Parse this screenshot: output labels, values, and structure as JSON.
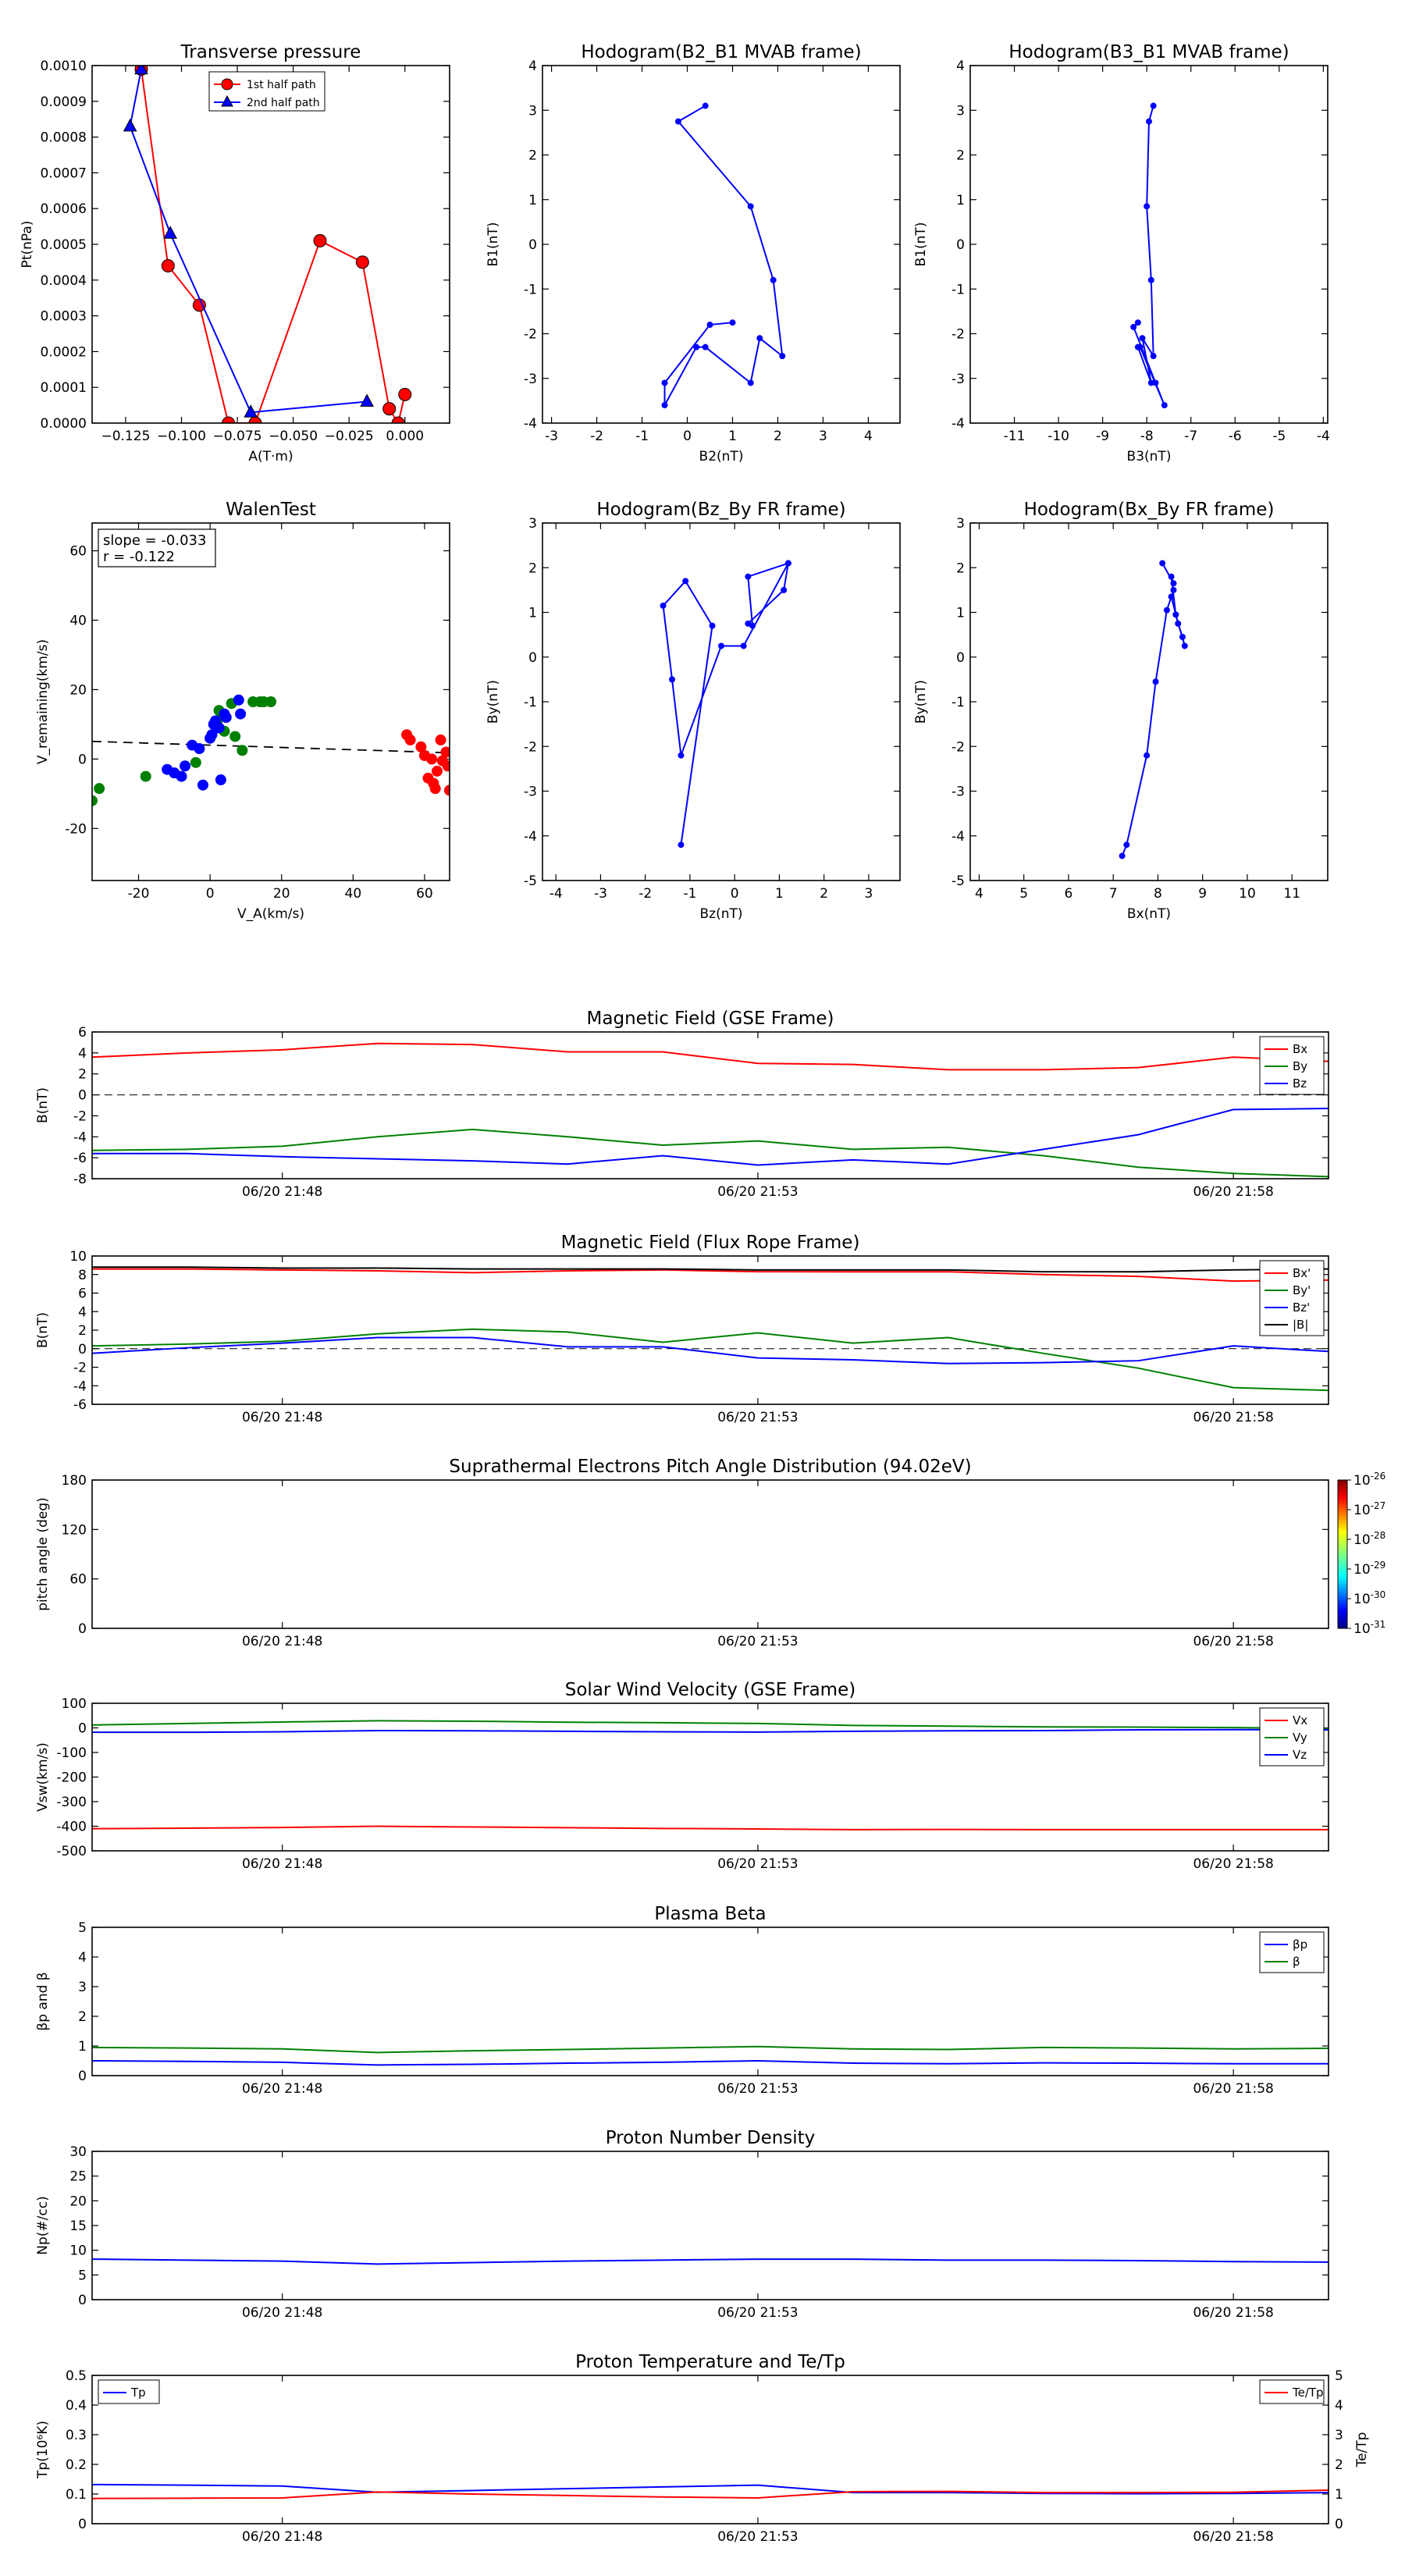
{
  "chart_data": [
    {
      "id": "tp",
      "type": "line",
      "title": "Transverse pressure",
      "xlabel": "A(T·m)",
      "ylabel": "Pt(nPa)",
      "xlim": [
        -0.14,
        0.02
      ],
      "ylim": [
        0,
        0.001
      ],
      "xticks": [
        -0.125,
        -0.1,
        -0.075,
        -0.05,
        -0.025,
        0.0
      ],
      "xtick_labels": [
        "−0.125",
        "−0.100",
        "−0.075",
        "−0.050",
        "−0.025",
        "0.000"
      ],
      "yticks": [
        0,
        0.0001,
        0.0002,
        0.0003,
        0.0004,
        0.0005,
        0.0006,
        0.0007,
        0.0008,
        0.0009,
        0.001
      ],
      "ytick_labels": [
        "0.0000",
        "0.0001",
        "0.0002",
        "0.0003",
        "0.0004",
        "0.0005",
        "0.0006",
        "0.0007",
        "0.0008",
        "0.0009",
        "0.0010"
      ],
      "legend": "top-center",
      "series": [
        {
          "name": "1st half path",
          "color": "#ff0000",
          "marker": "circle",
          "x": [
            -0.118,
            -0.106,
            -0.092,
            -0.079,
            -0.067,
            -0.038,
            -0.019,
            -0.007,
            -0.003,
            0.0
          ],
          "y": [
            0.00099,
            0.00044,
            0.00033,
            0.0,
            0.0,
            0.00051,
            0.00045,
            4e-05,
            0.0,
            8e-05
          ]
        },
        {
          "name": "2nd half path",
          "color": "#0000ff",
          "marker": "triangle",
          "x": [
            -0.118,
            -0.123,
            -0.105,
            -0.069,
            -0.017
          ],
          "y": [
            0.00099,
            0.00083,
            0.00053,
            3e-05,
            6e-05
          ]
        }
      ]
    },
    {
      "id": "h1",
      "type": "line",
      "title": "Hodogram(B2_B1 MVAB frame)",
      "xlabel": "B2(nT)",
      "ylabel": "B1(nT)",
      "xlim": [
        -3.2,
        4.7
      ],
      "ylim": [
        -4,
        4
      ],
      "xticks": [
        -3,
        -2,
        -1,
        0,
        1,
        2,
        3,
        4
      ],
      "yticks": [
        -4,
        -3,
        -2,
        -1,
        0,
        1,
        2,
        3,
        4
      ],
      "series": [
        {
          "color": "#0000ff",
          "x": [
            0.4,
            -0.2,
            1.4,
            1.9,
            2.1,
            1.6,
            1.4,
            0.4,
            0.2,
            -0.5,
            -0.5,
            0.5,
            1.0
          ],
          "y": [
            3.1,
            2.75,
            0.85,
            -0.8,
            -2.5,
            -2.1,
            -3.1,
            -2.3,
            -2.3,
            -3.6,
            -3.1,
            -1.8,
            -1.75
          ]
        }
      ]
    },
    {
      "id": "h2",
      "type": "line",
      "title": "Hodogram(B3_B1 MVAB frame)",
      "xlabel": "B3(nT)",
      "ylabel": "B1(nT)",
      "xlim": [
        -12,
        -3.9
      ],
      "ylim": [
        -4,
        4
      ],
      "xticks": [
        -11,
        -10,
        -9,
        -8,
        -7,
        -6,
        -5,
        -4
      ],
      "yticks": [
        -4,
        -3,
        -2,
        -1,
        0,
        1,
        2,
        3,
        4
      ],
      "series": [
        {
          "color": "#0000ff",
          "x": [
            -7.85,
            -7.95,
            -8.0,
            -7.9,
            -7.85,
            -8.1,
            -7.9,
            -8.2,
            -8.15,
            -7.6,
            -7.8,
            -8.3,
            -8.2
          ],
          "y": [
            3.1,
            2.75,
            0.85,
            -0.8,
            -2.5,
            -2.1,
            -3.1,
            -2.3,
            -2.3,
            -3.6,
            -3.1,
            -1.85,
            -1.75
          ]
        }
      ]
    },
    {
      "id": "walen",
      "type": "scatter",
      "title": "WalenTest",
      "xlabel": "V_A(km/s)",
      "ylabel": "V_remaining(km/s)",
      "xlim": [
        -33,
        67
      ],
      "ylim": [
        -35,
        68
      ],
      "xticks": [
        -20,
        0,
        20,
        40,
        60
      ],
      "yticks": [
        -20,
        0,
        20,
        40,
        60
      ],
      "annotation": [
        "slope = -0.033",
        "r = -0.122"
      ],
      "fit": {
        "slope": -0.033,
        "intercept": 4.0
      },
      "series": [
        {
          "color": "#008000",
          "x": [
            -33,
            -31,
            -18,
            -4,
            2,
            2.5,
            4,
            6,
            7,
            9,
            12,
            14,
            15,
            17
          ],
          "y": [
            -12,
            -8.5,
            -5,
            -1,
            11,
            14,
            8,
            16,
            6.5,
            2.5,
            16.5,
            16.5,
            16.5,
            16.5
          ]
        },
        {
          "color": "#0000ff",
          "x": [
            -12,
            -10,
            -8,
            -7,
            -5,
            -3,
            -2,
            0,
            0.5,
            1,
            1.5,
            2,
            2.5,
            3,
            4,
            4.5,
            8,
            8.5
          ],
          "y": [
            -3,
            -4,
            -5,
            -2,
            4,
            3,
            -7.5,
            6,
            7,
            10,
            11,
            9,
            9,
            -6,
            13,
            12,
            17,
            13
          ]
        },
        {
          "color": "#ff0000",
          "x": [
            55,
            56,
            59,
            60,
            61,
            62,
            62.5,
            63,
            63.5,
            64.5,
            65,
            66,
            66.5,
            67
          ],
          "y": [
            7,
            5.5,
            3.5,
            1,
            -5.5,
            0,
            -7,
            -8.5,
            -3.5,
            5.5,
            -0.5,
            2,
            -2,
            -9
          ]
        }
      ]
    },
    {
      "id": "h3",
      "type": "line",
      "title": "Hodogram(Bz_By FR frame)",
      "xlabel": "Bz(nT)",
      "ylabel": "By(nT)",
      "xlim": [
        -4.3,
        3.7
      ],
      "ylim": [
        -5,
        3
      ],
      "xticks": [
        -4,
        -3,
        -2,
        -1,
        0,
        1,
        2,
        3
      ],
      "yticks": [
        -5,
        -4,
        -3,
        -2,
        -1,
        0,
        1,
        2,
        3
      ],
      "series": [
        {
          "color": "#0000ff",
          "x": [
            1.2,
            0.3,
            0.4,
            0.3,
            1.1,
            1.2,
            0.2,
            -0.3,
            -1.2,
            -1.4,
            -1.6,
            -1.1,
            -0.5,
            -1.2
          ],
          "y": [
            2.1,
            1.8,
            0.7,
            0.75,
            1.5,
            2.1,
            0.25,
            0.25,
            -2.2,
            -0.5,
            1.15,
            1.7,
            0.7,
            -4.2
          ]
        }
      ]
    },
    {
      "id": "h4",
      "type": "line",
      "title": "Hodogram(Bx_By FR frame)",
      "xlabel": "Bx(nT)",
      "ylabel": "By(nT)",
      "xlim": [
        3.8,
        11.8
      ],
      "ylim": [
        -5,
        3
      ],
      "xticks": [
        4,
        5,
        6,
        7,
        8,
        9,
        10,
        11
      ],
      "yticks": [
        -5,
        -4,
        -3,
        -2,
        -1,
        0,
        1,
        2,
        3
      ],
      "series": [
        {
          "color": "#0000ff",
          "x": [
            7.2,
            7.3,
            7.75,
            7.95,
            8.2,
            8.35,
            8.3,
            8.45,
            8.55,
            8.6,
            8.4,
            8.3,
            8.35,
            8.1
          ],
          "y": [
            -4.45,
            -4.2,
            -2.2,
            -0.55,
            1.05,
            1.5,
            1.35,
            0.75,
            0.45,
            0.25,
            0.95,
            1.8,
            1.65,
            2.1
          ]
        }
      ]
    },
    {
      "id": "bgse",
      "type": "line",
      "title": "Magnetic Field (GSE Frame)",
      "ylabel": "B(nT)",
      "xlim": [
        0,
        13
      ],
      "xticks": [
        2,
        7,
        12
      ],
      "xtick_labels": [
        "06/20 21:48",
        "06/20 21:53",
        "06/20 21:58"
      ],
      "ylim": [
        -8,
        6
      ],
      "yticks": [
        -8,
        -6,
        -4,
        -2,
        0,
        2,
        4,
        6
      ],
      "zero_line": true,
      "legend": "top-right",
      "x": [
        0,
        1,
        2,
        3,
        4,
        5,
        6,
        7,
        8,
        9,
        10,
        11,
        12,
        13
      ],
      "series": [
        {
          "name": "Bx",
          "color": "#ff0000",
          "values": [
            3.6,
            4.0,
            4.3,
            4.9,
            4.8,
            4.1,
            4.1,
            3.0,
            2.9,
            2.4,
            2.4,
            2.6,
            3.6,
            3.2
          ]
        },
        {
          "name": "By",
          "color": "#008000",
          "values": [
            -5.3,
            -5.2,
            -4.9,
            -4.0,
            -3.3,
            -4.0,
            -4.8,
            -4.4,
            -5.2,
            -5.0,
            -5.8,
            -6.9,
            -7.5,
            -7.8
          ]
        },
        {
          "name": "Bz",
          "color": "#0000ff",
          "values": [
            -5.6,
            -5.6,
            -5.9,
            -6.1,
            -6.3,
            -6.6,
            -5.8,
            -6.7,
            -6.2,
            -6.6,
            -5.2,
            -3.8,
            -1.4,
            -1.3
          ]
        }
      ]
    },
    {
      "id": "bfr",
      "type": "line",
      "title": "Magnetic Field (Flux Rope Frame)",
      "ylabel": "B(nT)",
      "xlim": [
        0,
        13
      ],
      "xticks": [
        2,
        7,
        12
      ],
      "xtick_labels": [
        "06/20 21:48",
        "06/20 21:53",
        "06/20 21:58"
      ],
      "ylim": [
        -6,
        10
      ],
      "yticks": [
        -6,
        -4,
        -2,
        0,
        2,
        4,
        6,
        8,
        10
      ],
      "zero_line": true,
      "legend": "top-right",
      "x": [
        0,
        1,
        2,
        3,
        4,
        5,
        6,
        7,
        8,
        9,
        10,
        11,
        12,
        13
      ],
      "series": [
        {
          "name": "Bx'",
          "color": "#ff0000",
          "values": [
            8.6,
            8.6,
            8.5,
            8.4,
            8.2,
            8.4,
            8.5,
            8.3,
            8.3,
            8.3,
            8.0,
            7.8,
            7.3,
            7.4
          ]
        },
        {
          "name": "By'",
          "color": "#008000",
          "values": [
            0.3,
            0.5,
            0.8,
            1.6,
            2.1,
            1.8,
            0.7,
            1.7,
            0.6,
            1.2,
            -0.5,
            -2.1,
            -4.2,
            -4.5
          ]
        },
        {
          "name": "Bz'",
          "color": "#0000ff",
          "values": [
            -0.5,
            0.1,
            0.6,
            1.2,
            1.2,
            0.2,
            0.2,
            -1.0,
            -1.2,
            -1.6,
            -1.5,
            -1.3,
            0.3,
            -0.3
          ]
        },
        {
          "name": "|B|",
          "color": "#000000",
          "values": [
            8.8,
            8.8,
            8.7,
            8.7,
            8.6,
            8.6,
            8.6,
            8.5,
            8.5,
            8.5,
            8.3,
            8.3,
            8.5,
            8.6
          ]
        }
      ]
    },
    {
      "id": "pad",
      "type": "heatmap",
      "title": "Suprathermal Electrons Pitch Angle Distribution (94.02eV)",
      "ylabel": "pitch angle (deg)",
      "xlim": [
        0,
        13
      ],
      "xticks": [
        2,
        7,
        12
      ],
      "xtick_labels": [
        "06/20 21:48",
        "06/20 21:53",
        "06/20 21:58"
      ],
      "ylim": [
        0,
        180
      ],
      "yticks": [
        0,
        60,
        120,
        180
      ],
      "colorbar": {
        "tick_base": "10",
        "tick_exponents": [
          "-26",
          "-27",
          "-28",
          "-29",
          "-30",
          "-31"
        ]
      }
    },
    {
      "id": "vsw",
      "type": "line",
      "title": "Solar Wind Velocity (GSE Frame)",
      "ylabel": "Vsw(km/s)",
      "xlim": [
        0,
        13
      ],
      "xticks": [
        2,
        7,
        12
      ],
      "xtick_labels": [
        "06/20 21:48",
        "06/20 21:53",
        "06/20 21:58"
      ],
      "ylim": [
        -500,
        100
      ],
      "yticks": [
        -500,
        -400,
        -300,
        -200,
        -100,
        0,
        100
      ],
      "legend": "top-right",
      "x": [
        0,
        1,
        2,
        3,
        4,
        5,
        6,
        7,
        8,
        9,
        10,
        11,
        12,
        13
      ],
      "series": [
        {
          "name": "Vx",
          "color": "#ff0000",
          "values": [
            -410,
            -408,
            -405,
            -400,
            -403,
            -406,
            -409,
            -411,
            -414,
            -413,
            -414,
            -414,
            -414,
            -414
          ]
        },
        {
          "name": "Vy",
          "color": "#008000",
          "values": [
            12,
            18,
            24,
            29,
            27,
            23,
            21,
            18,
            10,
            7,
            4,
            3,
            1,
            -3
          ]
        },
        {
          "name": "Vz",
          "color": "#0000ff",
          "values": [
            -18,
            -18,
            -16,
            -11,
            -12,
            -14,
            -16,
            -17,
            -14,
            -12,
            -11,
            -8,
            -7,
            -8
          ]
        }
      ]
    },
    {
      "id": "beta",
      "type": "line",
      "title": "Plasma Beta",
      "ylabel": "βp and β",
      "xlim": [
        0,
        13
      ],
      "xticks": [
        2,
        7,
        12
      ],
      "xtick_labels": [
        "06/20 21:48",
        "06/20 21:53",
        "06/20 21:58"
      ],
      "ylim": [
        0,
        5
      ],
      "yticks": [
        0,
        1,
        2,
        3,
        4,
        5
      ],
      "legend": "top-right",
      "x": [
        0,
        1,
        2,
        3,
        4,
        5,
        6,
        7,
        8,
        9,
        10,
        11,
        12,
        13
      ],
      "series": [
        {
          "name": "βp",
          "color": "#0000ff",
          "values": [
            0.5,
            0.48,
            0.45,
            0.36,
            0.38,
            0.42,
            0.45,
            0.5,
            0.42,
            0.4,
            0.43,
            0.42,
            0.4,
            0.4
          ]
        },
        {
          "name": "β",
          "color": "#008000",
          "values": [
            0.95,
            0.93,
            0.9,
            0.78,
            0.84,
            0.88,
            0.93,
            0.98,
            0.9,
            0.88,
            0.95,
            0.93,
            0.9,
            0.92
          ]
        }
      ]
    },
    {
      "id": "np",
      "type": "line",
      "title": "Proton Number Density",
      "ylabel": "Np(#/cc)",
      "xlim": [
        0,
        13
      ],
      "xticks": [
        2,
        7,
        12
      ],
      "xtick_labels": [
        "06/20 21:48",
        "06/20 21:53",
        "06/20 21:58"
      ],
      "ylim": [
        0,
        30
      ],
      "yticks": [
        0,
        5,
        10,
        15,
        20,
        25,
        30
      ],
      "x": [
        0,
        1,
        2,
        3,
        4,
        5,
        6,
        7,
        8,
        9,
        10,
        11,
        12,
        13
      ],
      "series": [
        {
          "color": "#0000ff",
          "values": [
            8.2,
            8.0,
            7.8,
            7.2,
            7.5,
            7.8,
            8.0,
            8.2,
            8.2,
            8.0,
            8.0,
            7.9,
            7.7,
            7.6
          ]
        }
      ]
    },
    {
      "id": "temp",
      "type": "line",
      "title": "Proton Temperature and Te/Tp",
      "ylabel": "Tp(10⁶K)",
      "ylabel_right": "Te/Tp",
      "xlim": [
        0,
        13
      ],
      "xticks": [
        2,
        7,
        12
      ],
      "xtick_labels": [
        "06/20 21:48",
        "06/20 21:53",
        "06/20 21:58"
      ],
      "ylim": [
        0,
        0.5
      ],
      "yticks": [
        0,
        0.1,
        0.2,
        0.3,
        0.4,
        0.5
      ],
      "ylim_right": [
        0,
        5
      ],
      "yticks_right": [
        0,
        1,
        2,
        3,
        4,
        5
      ],
      "x": [
        0,
        1,
        2,
        3,
        4,
        5,
        6,
        7,
        8,
        9,
        10,
        11,
        12,
        13
      ],
      "series": [
        {
          "name": "Tp",
          "color": "#0000ff",
          "axis": "left",
          "legend": "top-left",
          "values": [
            0.132,
            0.13,
            0.127,
            0.106,
            0.112,
            0.118,
            0.124,
            0.13,
            0.105,
            0.105,
            0.102,
            0.101,
            0.102,
            0.105
          ]
        },
        {
          "name": "Te/Tp",
          "color": "#ff0000",
          "axis": "right",
          "legend": "top-right",
          "values": [
            0.85,
            0.86,
            0.87,
            1.07,
            1.0,
            0.95,
            0.9,
            0.87,
            1.08,
            1.09,
            1.05,
            1.05,
            1.06,
            1.13
          ]
        }
      ]
    }
  ]
}
